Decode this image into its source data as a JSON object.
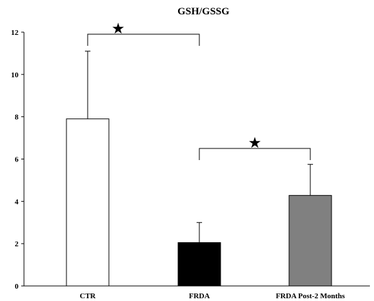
{
  "chart_data": {
    "type": "bar",
    "title": "GSH/GSSG",
    "xlabel": "",
    "ylabel": "",
    "ylim": [
      0,
      12
    ],
    "yticks": [
      0,
      2,
      4,
      6,
      8,
      10,
      12
    ],
    "categories": [
      "CTR",
      "FRDA",
      "FRDA Post-2 Months"
    ],
    "values": [
      7.9,
      2.05,
      4.28
    ],
    "error_upper": [
      11.1,
      3.0,
      5.75
    ],
    "bar_colors": [
      "#ffffff",
      "#000000",
      "#808080"
    ],
    "grid": false,
    "significance": [
      {
        "from": 0,
        "to": 1,
        "level": 12.0,
        "symbol": "★"
      },
      {
        "from": 1,
        "to": 2,
        "level": 6.6,
        "symbol": "★"
      }
    ]
  }
}
